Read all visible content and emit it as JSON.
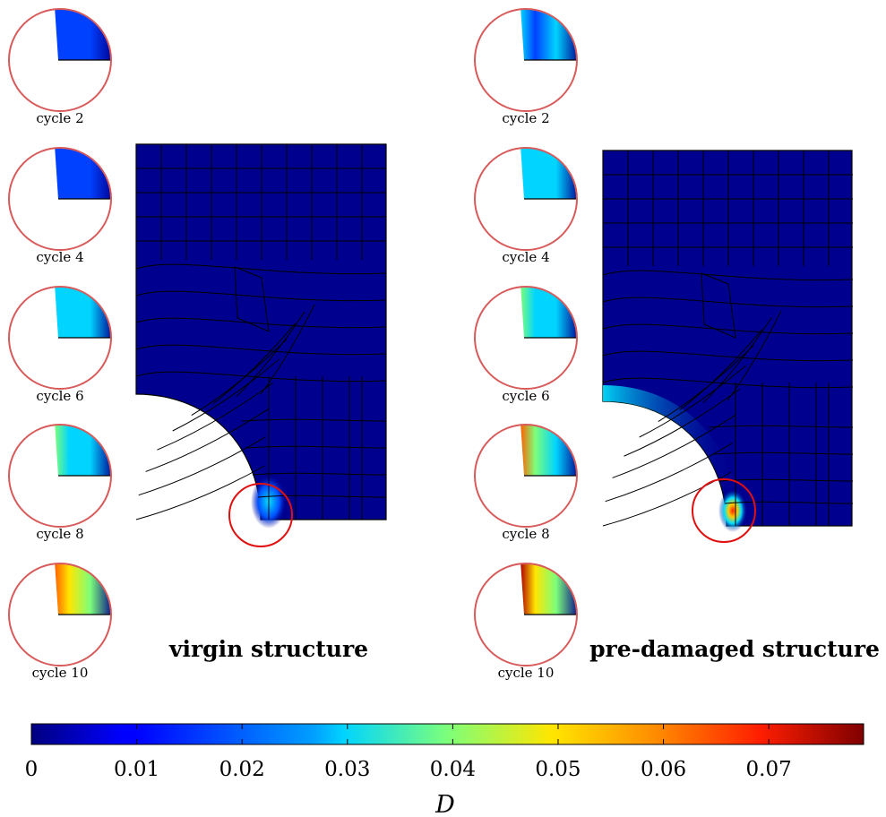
{
  "panels": [
    {
      "title": "virgin structure",
      "insets": [
        {
          "label": "cycle 2"
        },
        {
          "label": "cycle 4"
        },
        {
          "label": "cycle 6"
        },
        {
          "label": "cycle 8"
        },
        {
          "label": "cycle 10"
        }
      ]
    },
    {
      "title": "pre-damaged structure",
      "insets": [
        {
          "label": "cycle 2"
        },
        {
          "label": "cycle 4"
        },
        {
          "label": "cycle 6"
        },
        {
          "label": "cycle 8"
        },
        {
          "label": "cycle 10"
        }
      ]
    }
  ],
  "colorbar": {
    "ticks": [
      "0",
      "0.01",
      "0.02",
      "0.03",
      "0.04",
      "0.05",
      "0.06",
      "0.07"
    ],
    "label": "D",
    "min": 0,
    "max": 0.079,
    "colormap": "jet"
  },
  "colors": {
    "mesh_fill": "#00008f",
    "mesh_line": "#000000",
    "highlight_circle": "#e01010",
    "inset_ring": "#d85a5a"
  }
}
